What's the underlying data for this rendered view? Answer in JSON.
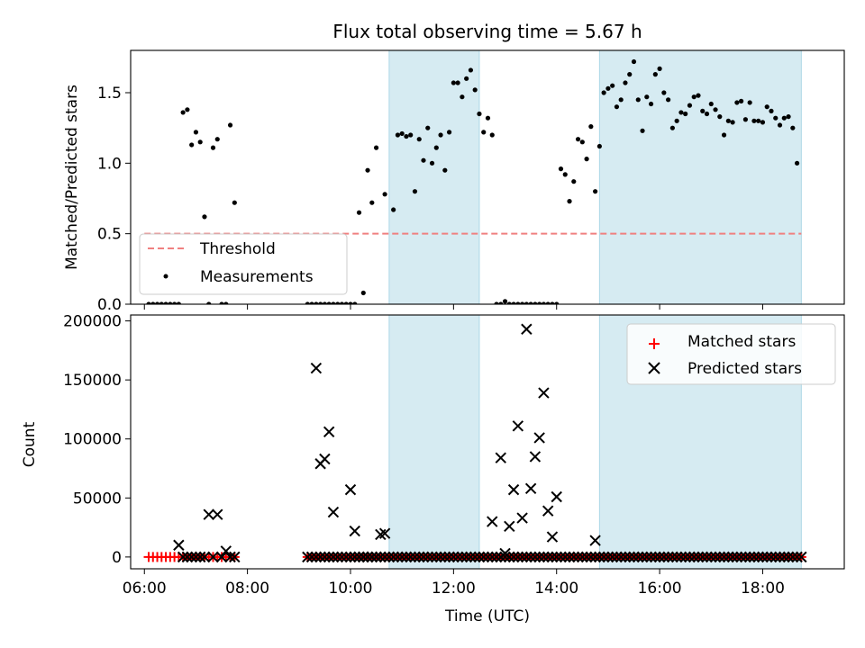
{
  "title": "Flux total observing time = 5.67 h",
  "colors": {
    "band": "#add8e6",
    "threshold": "#f08080",
    "measurement": "#000000",
    "matched": "#ff0000",
    "predicted": "#000000"
  },
  "chart_data": [
    {
      "type": "scatter",
      "panel": "top",
      "xlabel": "",
      "ylabel": "Matched/Predicted stars",
      "xlim": [
        "05:44",
        "19:35"
      ],
      "ylim": [
        0,
        1.8
      ],
      "y_ticks": [
        0.0,
        0.5,
        1.0,
        1.5
      ],
      "y_tick_labels": [
        "0.0",
        "0.5",
        "1.0",
        "1.5"
      ],
      "legend_position": "lower-left",
      "legend": {
        "threshold": "Threshold",
        "measurements": "Measurements"
      },
      "threshold": 0.5,
      "threshold_x_range": [
        "06:00",
        "18:45"
      ],
      "shaded_intervals": [
        [
          "10:45",
          "12:30"
        ],
        [
          "14:50",
          "18:45"
        ]
      ],
      "series": [
        {
          "name": "Measurements",
          "points": [
            [
              "06:05",
              0
            ],
            [
              "06:10",
              0
            ],
            [
              "06:15",
              0
            ],
            [
              "06:20",
              0
            ],
            [
              "06:25",
              0
            ],
            [
              "06:30",
              0
            ],
            [
              "06:35",
              0
            ],
            [
              "06:40",
              0
            ],
            [
              "06:45",
              1.36
            ],
            [
              "06:50",
              1.38
            ],
            [
              "06:55",
              1.13
            ],
            [
              "07:00",
              1.22
            ],
            [
              "07:05",
              1.15
            ],
            [
              "07:10",
              0.62
            ],
            [
              "07:15",
              0
            ],
            [
              "07:20",
              1.11
            ],
            [
              "07:25",
              1.17
            ],
            [
              "07:30",
              0
            ],
            [
              "07:35",
              0
            ],
            [
              "07:40",
              1.27
            ],
            [
              "07:45",
              0.72
            ],
            [
              "09:10",
              0
            ],
            [
              "09:15",
              0
            ],
            [
              "09:20",
              0
            ],
            [
              "09:25",
              0
            ],
            [
              "09:30",
              0
            ],
            [
              "09:35",
              0
            ],
            [
              "09:40",
              0
            ],
            [
              "09:45",
              0
            ],
            [
              "09:50",
              0
            ],
            [
              "09:55",
              0
            ],
            [
              "10:00",
              0
            ],
            [
              "10:05",
              0
            ],
            [
              "10:10",
              0.65
            ],
            [
              "10:15",
              0.08
            ],
            [
              "10:20",
              0.95
            ],
            [
              "10:25",
              0.72
            ],
            [
              "10:30",
              1.11
            ],
            [
              "10:40",
              0.78
            ],
            [
              "10:50",
              0.67
            ],
            [
              "10:55",
              1.2
            ],
            [
              "11:00",
              1.21
            ],
            [
              "11:05",
              1.19
            ],
            [
              "11:10",
              1.2
            ],
            [
              "11:15",
              0.8
            ],
            [
              "11:20",
              1.17
            ],
            [
              "11:25",
              1.02
            ],
            [
              "11:30",
              1.25
            ],
            [
              "11:35",
              1.0
            ],
            [
              "11:40",
              1.11
            ],
            [
              "11:45",
              1.2
            ],
            [
              "11:50",
              0.95
            ],
            [
              "11:55",
              1.22
            ],
            [
              "12:00",
              1.57
            ],
            [
              "12:05",
              1.57
            ],
            [
              "12:10",
              1.47
            ],
            [
              "12:15",
              1.6
            ],
            [
              "12:20",
              1.66
            ],
            [
              "12:25",
              1.52
            ],
            [
              "12:30",
              1.35
            ],
            [
              "12:35",
              1.22
            ],
            [
              "12:40",
              1.32
            ],
            [
              "12:45",
              1.2
            ],
            [
              "12:50",
              0
            ],
            [
              "12:55",
              0
            ],
            [
              "13:00",
              0.02
            ],
            [
              "13:05",
              0
            ],
            [
              "13:10",
              0
            ],
            [
              "13:15",
              0
            ],
            [
              "13:20",
              0
            ],
            [
              "13:25",
              0
            ],
            [
              "13:30",
              0
            ],
            [
              "13:35",
              0
            ],
            [
              "13:40",
              0
            ],
            [
              "13:45",
              0
            ],
            [
              "13:50",
              0
            ],
            [
              "13:55",
              0
            ],
            [
              "14:00",
              0
            ],
            [
              "14:05",
              0.96
            ],
            [
              "14:10",
              0.92
            ],
            [
              "14:15",
              0.73
            ],
            [
              "14:20",
              0.87
            ],
            [
              "14:25",
              1.17
            ],
            [
              "14:30",
              1.15
            ],
            [
              "14:35",
              1.03
            ],
            [
              "14:40",
              1.26
            ],
            [
              "14:45",
              0.8
            ],
            [
              "14:50",
              1.12
            ],
            [
              "14:55",
              1.5
            ],
            [
              "15:00",
              1.53
            ],
            [
              "15:05",
              1.55
            ],
            [
              "15:10",
              1.4
            ],
            [
              "15:15",
              1.45
            ],
            [
              "15:20",
              1.57
            ],
            [
              "15:25",
              1.63
            ],
            [
              "15:30",
              1.72
            ],
            [
              "15:35",
              1.45
            ],
            [
              "15:40",
              1.23
            ],
            [
              "15:45",
              1.47
            ],
            [
              "15:50",
              1.42
            ],
            [
              "15:55",
              1.63
            ],
            [
              "16:00",
              1.67
            ],
            [
              "16:05",
              1.5
            ],
            [
              "16:10",
              1.45
            ],
            [
              "16:15",
              1.25
            ],
            [
              "16:20",
              1.3
            ],
            [
              "16:25",
              1.36
            ],
            [
              "16:30",
              1.35
            ],
            [
              "16:35",
              1.41
            ],
            [
              "16:40",
              1.47
            ],
            [
              "16:45",
              1.48
            ],
            [
              "16:50",
              1.37
            ],
            [
              "16:55",
              1.35
            ],
            [
              "17:00",
              1.42
            ],
            [
              "17:05",
              1.38
            ],
            [
              "17:10",
              1.33
            ],
            [
              "17:15",
              1.2
            ],
            [
              "17:20",
              1.3
            ],
            [
              "17:25",
              1.29
            ],
            [
              "17:30",
              1.43
            ],
            [
              "17:35",
              1.44
            ],
            [
              "17:40",
              1.31
            ],
            [
              "17:45",
              1.43
            ],
            [
              "17:50",
              1.3
            ],
            [
              "17:55",
              1.3
            ],
            [
              "18:00",
              1.29
            ],
            [
              "18:05",
              1.4
            ],
            [
              "18:10",
              1.37
            ],
            [
              "18:15",
              1.32
            ],
            [
              "18:20",
              1.27
            ],
            [
              "18:25",
              1.32
            ],
            [
              "18:30",
              1.33
            ],
            [
              "18:35",
              1.25
            ],
            [
              "18:40",
              1.0
            ]
          ]
        }
      ]
    },
    {
      "type": "scatter",
      "panel": "bottom",
      "xlabel": "Time (UTC)",
      "ylabel": "Count",
      "xlim": [
        "05:44",
        "19:35"
      ],
      "ylim": [
        -10000,
        205000
      ],
      "y_ticks": [
        0,
        50000,
        100000,
        150000,
        200000
      ],
      "y_tick_labels": [
        "0",
        "50000",
        "100000",
        "150000",
        "200000"
      ],
      "x_ticks": [
        "06:00",
        "08:00",
        "10:00",
        "12:00",
        "14:00",
        "16:00",
        "18:00"
      ],
      "legend_position": "upper-right",
      "legend": {
        "matched": "Matched stars",
        "predicted": "Predicted stars"
      },
      "shaded_intervals": [
        [
          "10:45",
          "12:30"
        ],
        [
          "14:50",
          "18:45"
        ]
      ],
      "series": [
        {
          "name": "Matched stars",
          "marker": "plus",
          "segments": [
            [
              "06:05",
              "07:45",
              5
            ],
            [
              "09:10",
              "18:45",
              5
            ]
          ]
        },
        {
          "name": "Predicted stars",
          "marker": "x",
          "points": [
            [
              "06:40",
              10000
            ],
            [
              "06:45",
              0
            ],
            [
              "06:50",
              0
            ],
            [
              "06:55",
              0
            ],
            [
              "07:00",
              0
            ],
            [
              "07:05",
              0
            ],
            [
              "07:10",
              0
            ],
            [
              "07:15",
              36000
            ],
            [
              "07:20",
              0
            ],
            [
              "07:25",
              36000
            ],
            [
              "07:30",
              0
            ],
            [
              "07:35",
              5000
            ],
            [
              "07:40",
              0
            ],
            [
              "07:45",
              0
            ],
            [
              "09:20",
              160000
            ],
            [
              "09:25",
              79000
            ],
            [
              "09:30",
              83000
            ],
            [
              "09:35",
              106000
            ],
            [
              "09:40",
              38000
            ],
            [
              "10:00",
              57000
            ],
            [
              "10:05",
              22000
            ],
            [
              "10:10",
              0
            ],
            [
              "10:15",
              0
            ],
            [
              "10:20",
              0
            ],
            [
              "10:25",
              0
            ],
            [
              "10:30",
              0
            ],
            [
              "10:35",
              19000
            ],
            [
              "10:40",
              20000
            ],
            [
              "12:45",
              30000
            ],
            [
              "12:55",
              84000
            ],
            [
              "13:00",
              3000
            ],
            [
              "13:05",
              26000
            ],
            [
              "13:10",
              57000
            ],
            [
              "13:15",
              111000
            ],
            [
              "13:20",
              33000
            ],
            [
              "13:25",
              193000
            ],
            [
              "13:30",
              58000
            ],
            [
              "13:35",
              85000
            ],
            [
              "13:40",
              101000
            ],
            [
              "13:45",
              139000
            ],
            [
              "13:50",
              39000
            ],
            [
              "13:55",
              17000
            ],
            [
              "14:00",
              51000
            ],
            [
              "14:45",
              14000
            ]
          ],
          "baseline": [
            "09:10",
            "18:45",
            0
          ]
        }
      ]
    }
  ]
}
